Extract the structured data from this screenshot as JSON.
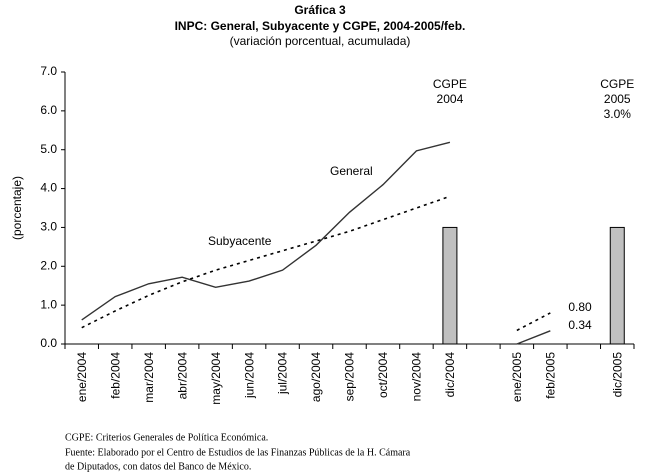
{
  "chart_data": {
    "type": "line",
    "title": "Gráfica 3",
    "subtitle": "INPC: General, Subyacente y CGPE, 2004-2005/feb.",
    "note": "(variación porcentual, acumulada)",
    "y_label": "(porcentaje)",
    "categories": [
      "ene/2004",
      "feb/2004",
      "mar/2004",
      "abr/2004",
      "may/2004",
      "jun/2004",
      "jul/2004",
      "ago/2004",
      "sep/2004",
      "oct/2004",
      "nov/2004",
      "dic/2004",
      null,
      "ene/2005",
      "feb/2005",
      null,
      "dic/2005"
    ],
    "series": [
      {
        "name": "General",
        "type": "line",
        "dash": false,
        "color": "#333333",
        "values": [
          0.62,
          1.22,
          1.55,
          1.72,
          1.46,
          1.62,
          1.9,
          2.54,
          3.39,
          4.1,
          4.97,
          5.19,
          null,
          0.0,
          0.34,
          null,
          null
        ],
        "value_labels": [
          null,
          null,
          null,
          null,
          null,
          null,
          null,
          null,
          null,
          null,
          null,
          null,
          null,
          null,
          "0.34",
          null,
          null
        ]
      },
      {
        "name": "Subyacente",
        "type": "line",
        "dash": true,
        "color": "#000000",
        "values": [
          0.42,
          0.85,
          1.25,
          1.6,
          1.9,
          2.15,
          2.4,
          2.65,
          2.9,
          3.2,
          3.5,
          3.8,
          null,
          0.35,
          0.8,
          null,
          null
        ],
        "value_labels": [
          null,
          null,
          null,
          null,
          null,
          null,
          null,
          null,
          null,
          null,
          null,
          null,
          null,
          null,
          "0.80",
          null,
          null
        ]
      },
      {
        "name": "CGPE",
        "type": "bar",
        "color": "#c0c0c0",
        "values": [
          null,
          null,
          null,
          null,
          null,
          null,
          null,
          null,
          null,
          null,
          null,
          3.0,
          null,
          null,
          null,
          null,
          3.0
        ]
      }
    ],
    "annotations": [
      "CGPE",
      "2004",
      "CGPE",
      "2005",
      "3.0%"
    ],
    "footnotes": [
      "CGPE: Criterios Generales de Política Económica.",
      "Fuente: Elaborado por el Centro de Estudios de las Finanzas Públicas de la H. Cámara",
      "de Diputados, con  datos del Banco de México."
    ],
    "ylim": [
      0,
      7
    ],
    "yticks": [
      {
        "value": 0,
        "label": "0.0"
      },
      {
        "value": 1,
        "label": "1.0"
      },
      {
        "value": 2,
        "label": "2.0"
      },
      {
        "value": 3,
        "label": "3.0"
      },
      {
        "value": 4,
        "label": "4.0"
      },
      {
        "value": 5,
        "label": "5.0"
      },
      {
        "value": 6,
        "label": "6.0"
      },
      {
        "value": 7,
        "label": "7.0"
      }
    ],
    "grid": false
  }
}
